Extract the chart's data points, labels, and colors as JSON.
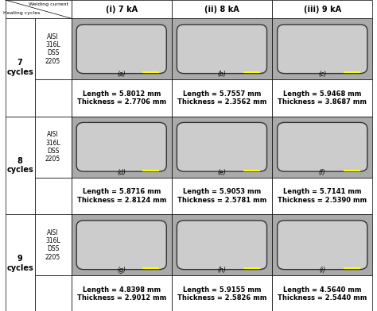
{
  "title_col1": "(i) 7 kA",
  "title_col2": "(ii) 8 kA",
  "title_col3": "(iii) 9 kA",
  "header_row1": "Welding current",
  "header_row2": "Heating cycles",
  "row_labels": [
    "7\ncycles",
    "8\ncycles",
    "9\ncycles"
  ],
  "sub_labels": [
    "AISI\n316L\nDSS\n2205",
    "AISI\n316L\nDSS\n2205",
    "AISI\n316L\nDSS\n2205"
  ],
  "img_labels": [
    [
      "(a)",
      "(b)",
      "(c)"
    ],
    [
      "(d)",
      "(e)",
      "(f)"
    ],
    [
      "(g)",
      "(h)",
      "(i)"
    ]
  ],
  "measurements": [
    [
      "Length = 5.8012 mm\nThickness = 2.7706 mm",
      "Length = 5.7557 mm\nThickness = 2.3562 mm",
      "Length = 5.9468 mm\nThickness = 3.8687 mm"
    ],
    [
      "Length = 5.8716 mm\nThickness = 2.8124 mm",
      "Length = 5.9053 mm\nThickness = 2.5781 mm",
      "Length = 5.7141 mm\nThickness = 2.5390 mm"
    ],
    [
      "Length = 4.8398 mm\nThickness = 2.9012 mm",
      "Length = 5.9155 mm\nThickness = 2.5826 mm",
      "Length = 4.5640 mm\nThickness = 2.5440 mm"
    ]
  ],
  "bg_color": "#ffffff",
  "border_color": "#000000",
  "text_color": "#000000",
  "header_bg": "#ffffff",
  "img_bg": "#aaaaaa"
}
